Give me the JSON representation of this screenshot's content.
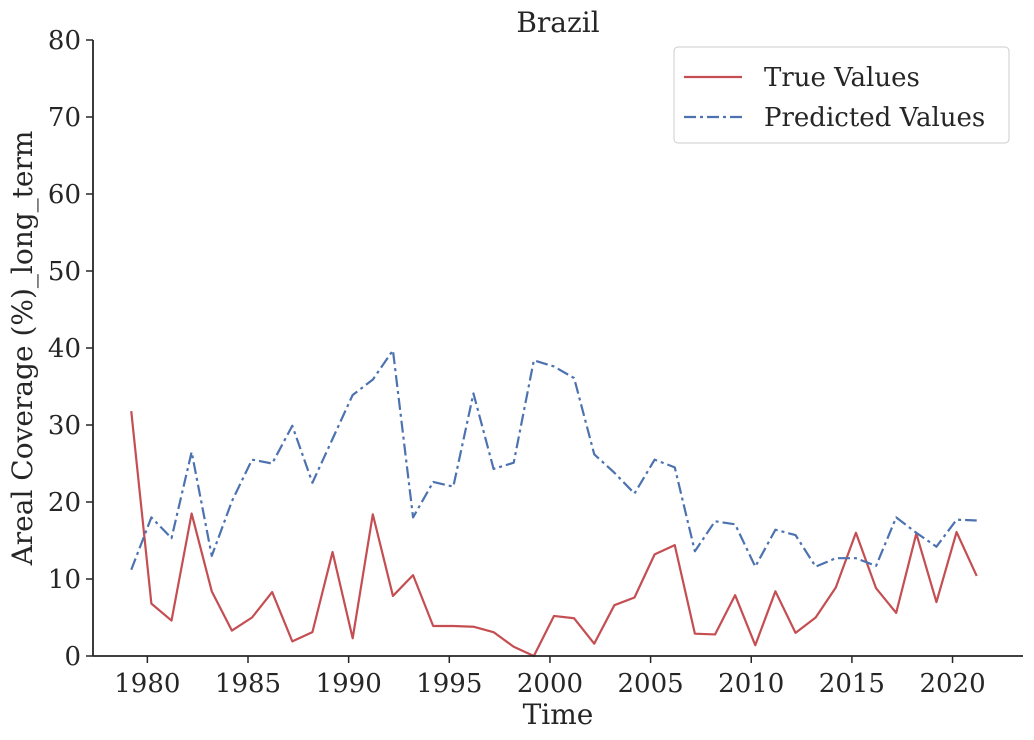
{
  "chart_data": {
    "type": "line",
    "title": "Brazil",
    "xlabel": "Time",
    "ylabel": "Areal Coverage (%)_long_term",
    "xlim": [
      1977.3,
      2023.5
    ],
    "ylim": [
      0,
      80
    ],
    "x_ticks": [
      1980,
      1985,
      1990,
      1995,
      2000,
      2005,
      2010,
      2015,
      2020
    ],
    "y_ticks": [
      0,
      10,
      20,
      30,
      40,
      50,
      60,
      70,
      80
    ],
    "grid": false,
    "legend_position": "top-right",
    "x": [
      1979.2,
      1980.2,
      1981.2,
      1982.2,
      1983.2,
      1984.2,
      1985.2,
      1986.2,
      1987.2,
      1988.2,
      1989.2,
      1990.2,
      1991.2,
      1992.2,
      1993.2,
      1994.2,
      1995.2,
      1996.2,
      1997.2,
      1998.2,
      1999.2,
      2000.2,
      2001.2,
      2002.2,
      2003.2,
      2004.2,
      2005.2,
      2006.2,
      2007.2,
      2008.2,
      2009.2,
      2010.2,
      2011.2,
      2012.2,
      2013.2,
      2014.2,
      2015.2,
      2016.2,
      2017.2,
      2018.2,
      2019.2,
      2020.2,
      2021.2
    ],
    "series": [
      {
        "name": "True Values",
        "color": "#c44e52",
        "style": "solid",
        "values": [
          31.8,
          6.8,
          4.6,
          18.5,
          8.4,
          3.3,
          5.0,
          8.3,
          1.9,
          3.1,
          13.5,
          2.3,
          18.4,
          7.8,
          10.5,
          3.9,
          3.9,
          3.8,
          3.1,
          1.2,
          0.0,
          5.2,
          4.9,
          1.6,
          6.6,
          7.6,
          13.2,
          14.4,
          2.9,
          2.8,
          7.9,
          1.4,
          8.4,
          3.0,
          5.0,
          8.9,
          16.0,
          8.8,
          5.6,
          15.9,
          7.0,
          16.1,
          10.4
        ]
      },
      {
        "name": "Predicted Values",
        "color": "#4c72b0",
        "style": "dashdot",
        "values": [
          11.2,
          18.0,
          15.3,
          26.5,
          13.0,
          20.1,
          25.5,
          25.0,
          29.9,
          22.5,
          28.2,
          33.9,
          35.9,
          39.7,
          18.0,
          22.6,
          22.0,
          34.1,
          24.3,
          25.1,
          38.4,
          37.6,
          36.1,
          26.2,
          23.8,
          21.1,
          25.5,
          24.5,
          13.6,
          17.5,
          17.1,
          11.6,
          16.4,
          15.7,
          11.6,
          12.7,
          12.7,
          11.7,
          18.0,
          16.0,
          14.2,
          17.7,
          17.6
        ]
      }
    ]
  }
}
